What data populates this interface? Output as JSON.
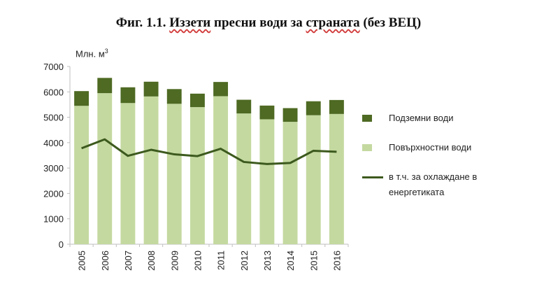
{
  "title": {
    "prefix": "Фиг. 1.1.  ",
    "word1": "Иззети",
    "mid1": " пресни води за ",
    "word2": "страната",
    "suffix": " (без ВЕЦ)"
  },
  "unit": {
    "text": "Млн. м",
    "sup": "3"
  },
  "colors": {
    "underground": "#4e6a23",
    "surface": "#c4d9a0",
    "cooling": "#3d5a1e",
    "axis": "#bfbfbf",
    "text": "#222222",
    "underline": "#d23a3a"
  },
  "chart_data": {
    "type": "bar",
    "stacked": true,
    "title": "Фиг. 1.1.  Иззети пресни води за страната (без ВЕЦ)",
    "ylabel": "Млн. м3",
    "ylim": [
      0,
      7000
    ],
    "yticks": [
      0,
      1000,
      2000,
      3000,
      4000,
      5000,
      6000,
      7000
    ],
    "grid": false,
    "legend_position": "right",
    "categories": [
      "2005",
      "2006",
      "2007",
      "2008",
      "2009",
      "2010",
      "2011",
      "2012",
      "2013",
      "2014",
      "2015",
      "2016"
    ],
    "series": [
      {
        "name": "Повърхностни води",
        "type": "bar",
        "values": [
          5450,
          5950,
          5560,
          5820,
          5530,
          5400,
          5830,
          5150,
          4920,
          4820,
          5080,
          5130
        ]
      },
      {
        "name": "Подземни води",
        "type": "bar",
        "values": [
          580,
          600,
          620,
          580,
          580,
          530,
          560,
          540,
          540,
          540,
          550,
          550
        ]
      },
      {
        "name": "в т.ч. за охлаждане в\nенергетиката",
        "type": "line",
        "values": [
          3780,
          4130,
          3480,
          3720,
          3540,
          3470,
          3760,
          3240,
          3160,
          3200,
          3680,
          3640
        ]
      }
    ]
  }
}
